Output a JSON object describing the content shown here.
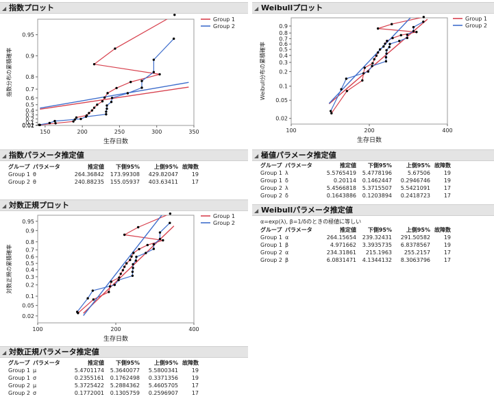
{
  "colors": {
    "group1": "#d7404d",
    "group2": "#3e6dcc",
    "points": "#000000",
    "grid": "#dddddd"
  },
  "sections": {
    "exp_plot": "指数プロット",
    "exp_params": "指数パラメータ推定値",
    "lognorm_plot": "対数正規プロット",
    "lognorm_params": "対数正規パラメータ推定値",
    "weibull_plot": "Weibullプロット",
    "extreme_params": "極値パラメータ推定値",
    "weibull_params": "Weibullパラメータ推定値"
  },
  "chart_data": [
    {
      "id": "exp",
      "type": "scatter",
      "title": "指数プロット",
      "xlabel": "生存日数",
      "ylabel": "指数分布の累積確率",
      "x_axis": {
        "scale": "linear",
        "range": [
          140,
          350
        ],
        "ticks": [
          150,
          200,
          250,
          300,
          350
        ]
      },
      "y_axis": {
        "scale": "exponential",
        "range": [
          0.01,
          0.97
        ],
        "ticks": [
          0.01,
          0.02,
          0.1,
          0.2,
          0.3,
          0.4,
          0.5,
          0.6,
          0.7,
          0.8,
          0.9,
          0.95
        ],
        "tick_labels": [
          "0.01",
          "0.02",
          "0.1",
          "0.2",
          "0.3",
          "0.4",
          "0.5",
          "0.6",
          "0.7",
          "0.8",
          "0.9",
          "0.95"
        ]
      },
      "series": [
        {
          "name": "Group 1",
          "color_key": "group1",
          "points": [
            [
              143,
              0.026
            ],
            [
              164,
              0.079
            ],
            [
              188,
              0.132
            ],
            [
              190,
              0.184
            ],
            [
              192,
              0.237
            ],
            [
              206,
              0.289
            ],
            [
              209,
              0.342
            ],
            [
              213,
              0.395
            ],
            [
              216,
              0.447
            ],
            [
              220,
              0.5
            ],
            [
              227,
              0.553
            ],
            [
              230,
              0.605
            ],
            [
              234,
              0.658
            ],
            [
              246,
              0.711
            ],
            [
              265,
              0.763
            ],
            [
              304,
              0.816
            ],
            [
              216,
              0.868
            ],
            [
              244,
              0.921
            ],
            [
              324,
              0.974
            ]
          ],
          "fit": [
            [
              143,
              0.42
            ],
            [
              343,
              0.72
            ],
            [
              343,
              0.72
            ]
          ]
        },
        {
          "name": "Group 2",
          "color_key": "group2",
          "points": [
            [
              142,
              0.029
            ],
            [
              156,
              0.086
            ],
            [
              163,
              0.143
            ],
            [
              198,
              0.2
            ],
            [
              205,
              0.257
            ],
            [
              232,
              0.314
            ],
            [
              232,
              0.371
            ],
            [
              233,
              0.429
            ],
            [
              233,
              0.486
            ],
            [
              239,
              0.543
            ],
            [
              240,
              0.6
            ],
            [
              261,
              0.657
            ],
            [
              280,
              0.714
            ],
            [
              280,
              0.771
            ],
            [
              296,
              0.829
            ],
            [
              296,
              0.886
            ],
            [
              323,
              0.943
            ]
          ],
          "fit": [
            [
              143,
              0.44
            ],
            [
              343,
              0.76
            ]
          ]
        }
      ]
    },
    {
      "id": "lognorm",
      "type": "scatter",
      "title": "対数正規プロット",
      "xlabel": "生存日数",
      "ylabel": "対数正規の累積確率",
      "x_axis": {
        "scale": "log",
        "range": [
          100,
          400
        ],
        "ticks": [
          100,
          200,
          400
        ],
        "tick_labels": [
          "100",
          "200",
          "400"
        ]
      },
      "y_axis": {
        "scale": "normal",
        "range": [
          0.01,
          0.97
        ],
        "ticks": [
          0.02,
          0.05,
          0.1,
          0.2,
          0.3,
          0.4,
          0.5,
          0.6,
          0.7,
          0.8,
          0.9,
          0.95
        ],
        "tick_labels": [
          "0.02",
          "0.05",
          "0.1",
          "0.2",
          "0.3",
          "0.4",
          "0.5",
          "0.6",
          "0.7",
          "0.8",
          "0.9",
          "0.95"
        ]
      },
      "series": [
        {
          "name": "Group 1",
          "color_key": "group1",
          "points": [
            [
              143,
              0.026
            ],
            [
              164,
              0.079
            ],
            [
              188,
              0.132
            ],
            [
              190,
              0.184
            ],
            [
              192,
              0.237
            ],
            [
              206,
              0.289
            ],
            [
              209,
              0.342
            ],
            [
              213,
              0.395
            ],
            [
              216,
              0.447
            ],
            [
              220,
              0.5
            ],
            [
              227,
              0.553
            ],
            [
              230,
              0.605
            ],
            [
              234,
              0.658
            ],
            [
              246,
              0.711
            ],
            [
              265,
              0.763
            ],
            [
              304,
              0.816
            ],
            [
              216,
              0.868
            ],
            [
              244,
              0.921
            ],
            [
              324,
              0.974
            ]
          ],
          "fit_params": {
            "mu": 5.4701174,
            "sigma": 0.2355161
          },
          "fit_range": [
            150,
            335
          ]
        },
        {
          "name": "Group 2",
          "color_key": "group2",
          "points": [
            [
              142,
              0.029
            ],
            [
              156,
              0.086
            ],
            [
              163,
              0.143
            ],
            [
              198,
              0.2
            ],
            [
              205,
              0.257
            ],
            [
              232,
              0.314
            ],
            [
              232,
              0.371
            ],
            [
              233,
              0.429
            ],
            [
              233,
              0.486
            ],
            [
              239,
              0.543
            ],
            [
              240,
              0.6
            ],
            [
              261,
              0.657
            ],
            [
              280,
              0.714
            ],
            [
              280,
              0.771
            ],
            [
              296,
              0.829
            ],
            [
              296,
              0.886
            ],
            [
              323,
              0.943
            ]
          ],
          "fit_params": {
            "mu": 5.3725422,
            "sigma": 0.1772001
          },
          "fit_range": [
            150,
            320
          ]
        }
      ]
    },
    {
      "id": "weibull",
      "type": "scatter",
      "title": "Weibullプロット",
      "xlabel": "生存日数",
      "ylabel": "Weibull分布の累積確率",
      "x_axis": {
        "scale": "log",
        "range": [
          100,
          400
        ],
        "ticks": [
          100,
          200,
          400
        ],
        "tick_labels": [
          "100",
          "200",
          "400"
        ]
      },
      "y_axis": {
        "scale": "weibull",
        "range": [
          0.015,
          0.97
        ],
        "ticks": [
          0.02,
          0.05,
          0.1,
          0.2,
          0.3,
          0.4,
          0.5,
          0.6,
          0.7,
          0.8,
          0.9
        ],
        "tick_labels": [
          "0.02",
          "0.05",
          "0.1",
          "0.2",
          "0.3",
          "0.4",
          "0.5",
          "0.6",
          "0.7",
          "0.8",
          "0.9"
        ]
      },
      "series": [
        {
          "name": "Group 1",
          "color_key": "group1",
          "points": [
            [
              143,
              0.026
            ],
            [
              164,
              0.079
            ],
            [
              188,
              0.132
            ],
            [
              190,
              0.184
            ],
            [
              192,
              0.237
            ],
            [
              206,
              0.289
            ],
            [
              209,
              0.342
            ],
            [
              213,
              0.395
            ],
            [
              216,
              0.447
            ],
            [
              220,
              0.5
            ],
            [
              227,
              0.553
            ],
            [
              230,
              0.605
            ],
            [
              234,
              0.658
            ],
            [
              246,
              0.711
            ],
            [
              265,
              0.763
            ],
            [
              304,
              0.816
            ],
            [
              216,
              0.868
            ],
            [
              244,
              0.921
            ],
            [
              324,
              0.974
            ]
          ],
          "fit_params": {
            "alpha": 264.15654,
            "beta": 4.971662
          },
          "fit_range": [
            140,
            335
          ]
        },
        {
          "name": "Group 2",
          "color_key": "group2",
          "points": [
            [
              142,
              0.029
            ],
            [
              156,
              0.086
            ],
            [
              163,
              0.143
            ],
            [
              198,
              0.2
            ],
            [
              205,
              0.257
            ],
            [
              232,
              0.314
            ],
            [
              232,
              0.371
            ],
            [
              233,
              0.429
            ],
            [
              233,
              0.486
            ],
            [
              239,
              0.543
            ],
            [
              240,
              0.6
            ],
            [
              261,
              0.657
            ],
            [
              280,
              0.714
            ],
            [
              280,
              0.771
            ],
            [
              296,
              0.829
            ],
            [
              296,
              0.886
            ],
            [
              323,
              0.943
            ]
          ],
          "fit_params": {
            "alpha": 234.31861,
            "beta": 6.0831471
          },
          "fit_range": [
            140,
            320
          ]
        }
      ]
    }
  ],
  "legend": {
    "group1": "Group 1",
    "group2": "Group 2"
  },
  "exp_table": {
    "headers": [
      "グループ",
      "パラメータ",
      "推定値",
      "下側95%",
      "上側95%",
      "故障数"
    ],
    "rows": [
      [
        "Group 1",
        "θ",
        "264.36842",
        "173.99308",
        "429.82047",
        "19"
      ],
      [
        "Group 2",
        "θ",
        "240.88235",
        "155.05937",
        "403.63411",
        "17"
      ]
    ]
  },
  "lognorm_table": {
    "headers": [
      "グループ",
      "パラメータ",
      "推定値",
      "下側95%",
      "上側95%",
      "故障数"
    ],
    "rows": [
      [
        "Group 1",
        "μ",
        "5.4701174",
        "5.3640077",
        "5.5800341",
        "19"
      ],
      [
        "Group 1",
        "σ",
        "0.2355161",
        "0.1762498",
        "0.3371356",
        "19"
      ],
      [
        "Group 2",
        "μ",
        "5.3725422",
        "5.2884362",
        "5.4605705",
        "17"
      ],
      [
        "Group 2",
        "σ",
        "0.1772001",
        "0.1305759",
        "0.2596907",
        "17"
      ]
    ]
  },
  "extreme_table": {
    "headers": [
      "グループ",
      "パラメータ",
      "推定値",
      "下側95%",
      "上側95%",
      "故障数"
    ],
    "rows": [
      [
        "Group 1",
        "λ",
        "5.5765419",
        "5.4778196",
        "5.67506",
        "19"
      ],
      [
        "Group 1",
        "δ",
        "0.20114",
        "0.1462447",
        "0.2946746",
        "19"
      ],
      [
        "Group 2",
        "λ",
        "5.4566818",
        "5.3715507",
        "5.5421091",
        "17"
      ],
      [
        "Group 2",
        "δ",
        "0.1643886",
        "0.1203894",
        "0.2418723",
        "17"
      ]
    ]
  },
  "weibull_note": "α=exp(λ), β=1/δのときの極値に等しい",
  "weibull_table": {
    "headers": [
      "グループ",
      "パラメータ",
      "推定値",
      "下側95%",
      "上側95%",
      "故障数"
    ],
    "rows": [
      [
        "Group 1",
        "α",
        "264.15654",
        "239.32431",
        "291.50582",
        "19"
      ],
      [
        "Group 1",
        "β",
        "4.971662",
        "3.3935735",
        "6.8378567",
        "19"
      ],
      [
        "Group 2",
        "α",
        "234.31861",
        "215.1963",
        "255.2157",
        "17"
      ],
      [
        "Group 2",
        "β",
        "6.0831471",
        "4.1344132",
        "8.3063796",
        "17"
      ]
    ]
  }
}
